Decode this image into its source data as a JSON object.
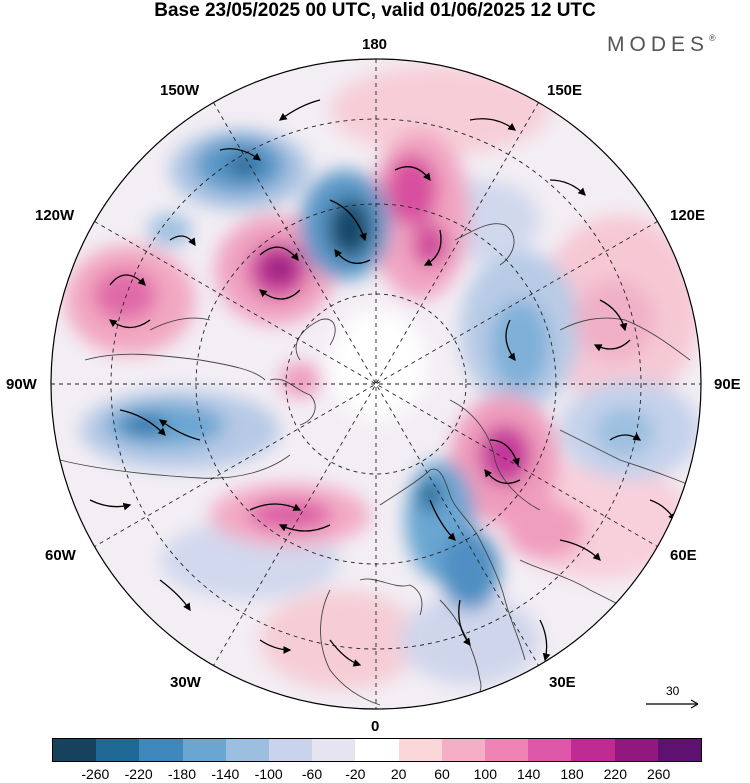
{
  "title": "Base 23/05/2025 00 UTC, valid 01/06/2025 12 UTC",
  "brand": "MODES",
  "brand_mark": "®",
  "longitude_labels": {
    "top": "180",
    "bottom": "0",
    "left": "90W",
    "right": "90E",
    "upper_left": "150W",
    "upper_right": "150E",
    "mid_upper_left": "120W",
    "mid_upper_right": "120E",
    "mid_lower_left": "60W",
    "mid_lower_right": "60E",
    "lower_left": "30W",
    "lower_right": "30E"
  },
  "reference_vector": {
    "label": "30"
  },
  "colorbar": {
    "colors": [
      "#17425e",
      "#1f6896",
      "#3f88bd",
      "#6aa6d2",
      "#9cbfe0",
      "#c9d3eb",
      "#e6e4f1",
      "#ffffff",
      "#fbd7da",
      "#f5aec5",
      "#ef83b6",
      "#de57a8",
      "#c02a93",
      "#92177f",
      "#5e1170"
    ],
    "tick_labels": [
      "-260",
      "-220",
      "-180",
      "-140",
      "-100",
      "-60",
      "-20",
      "20",
      "60",
      "100",
      "140",
      "180",
      "220",
      "260"
    ]
  }
}
